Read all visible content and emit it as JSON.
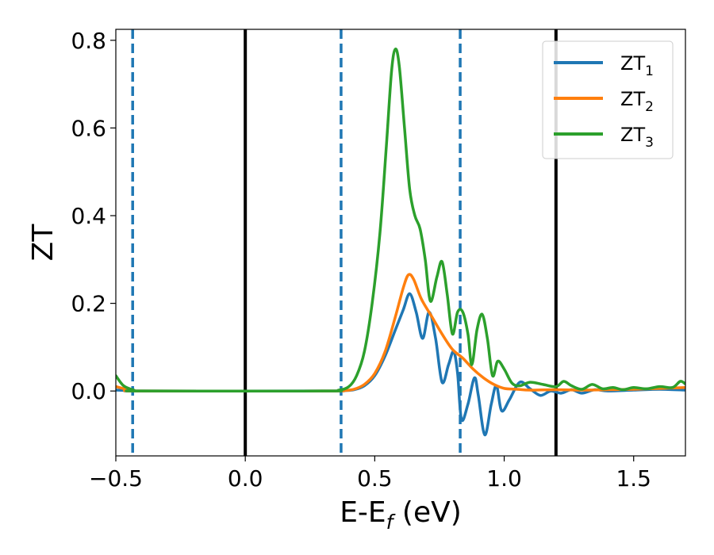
{
  "chart_data": {
    "type": "line",
    "xlabel": {
      "main": "E-E",
      "sub": "f",
      "tail": " (eV)"
    },
    "ylabel": "ZT",
    "xlim": [
      -0.5,
      1.7
    ],
    "ylim": [
      -0.148,
      0.825
    ],
    "xticks": [
      -0.5,
      0.0,
      0.5,
      1.0,
      1.5
    ],
    "xtick_labels": [
      "−0.5",
      "0.0",
      "0.5",
      "1.0",
      "1.5"
    ],
    "yticks": [
      0.0,
      0.2,
      0.4,
      0.6,
      0.8
    ],
    "ytick_labels": [
      "0.0",
      "0.2",
      "0.4",
      "0.6",
      "0.8"
    ],
    "grid": false,
    "legend_position": "top-right",
    "vlines": [
      {
        "x": -0.435,
        "style": "dashed",
        "color": "#1f77b4"
      },
      {
        "x": 0.0,
        "style": "solid",
        "color": "#000000"
      },
      {
        "x": 0.37,
        "style": "dashed",
        "color": "#1f77b4"
      },
      {
        "x": 0.83,
        "style": "dashed",
        "color": "#1f77b4"
      },
      {
        "x": 1.2,
        "style": "solid",
        "color": "#000000"
      }
    ],
    "series": [
      {
        "name": "ZT",
        "name_sub": "1",
        "color": "#1f77b4",
        "points": [
          [
            -0.5,
            0.002
          ],
          [
            -0.45,
            0.001
          ],
          [
            -0.4,
            0.0
          ],
          [
            0.3,
            0.0
          ],
          [
            0.38,
            0.001
          ],
          [
            0.42,
            0.003
          ],
          [
            0.46,
            0.012
          ],
          [
            0.5,
            0.035
          ],
          [
            0.54,
            0.08
          ],
          [
            0.58,
            0.14
          ],
          [
            0.61,
            0.185
          ],
          [
            0.635,
            0.222
          ],
          [
            0.66,
            0.18
          ],
          [
            0.685,
            0.12
          ],
          [
            0.71,
            0.18
          ],
          [
            0.735,
            0.12
          ],
          [
            0.76,
            0.02
          ],
          [
            0.785,
            0.06
          ],
          [
            0.805,
            0.09
          ],
          [
            0.82,
            0.04
          ],
          [
            0.835,
            -0.065
          ],
          [
            0.86,
            -0.03
          ],
          [
            0.885,
            0.03
          ],
          [
            0.9,
            -0.01
          ],
          [
            0.925,
            -0.1
          ],
          [
            0.95,
            -0.03
          ],
          [
            0.97,
            0.012
          ],
          [
            0.99,
            -0.045
          ],
          [
            1.02,
            -0.02
          ],
          [
            1.06,
            0.02
          ],
          [
            1.1,
            0.005
          ],
          [
            1.14,
            -0.01
          ],
          [
            1.18,
            0.0
          ],
          [
            1.22,
            -0.005
          ],
          [
            1.26,
            0.003
          ],
          [
            1.3,
            -0.005
          ],
          [
            1.35,
            0.003
          ],
          [
            1.4,
            0.0
          ],
          [
            1.5,
            0.002
          ],
          [
            1.6,
            0.004
          ],
          [
            1.7,
            0.002
          ]
        ]
      },
      {
        "name": "ZT",
        "name_sub": "2",
        "color": "#ff7f0e",
        "points": [
          [
            -0.5,
            0.01
          ],
          [
            -0.45,
            0.003
          ],
          [
            -0.4,
            0.0
          ],
          [
            0.3,
            0.0
          ],
          [
            0.38,
            0.001
          ],
          [
            0.42,
            0.004
          ],
          [
            0.46,
            0.015
          ],
          [
            0.5,
            0.04
          ],
          [
            0.54,
            0.09
          ],
          [
            0.58,
            0.17
          ],
          [
            0.61,
            0.235
          ],
          [
            0.63,
            0.265
          ],
          [
            0.65,
            0.255
          ],
          [
            0.68,
            0.21
          ],
          [
            0.72,
            0.17
          ],
          [
            0.76,
            0.13
          ],
          [
            0.8,
            0.095
          ],
          [
            0.84,
            0.075
          ],
          [
            0.88,
            0.05
          ],
          [
            0.92,
            0.03
          ],
          [
            0.96,
            0.015
          ],
          [
            1.0,
            0.006
          ],
          [
            1.05,
            0.004
          ],
          [
            1.1,
            0.002
          ],
          [
            1.2,
            0.003
          ],
          [
            1.3,
            0.002
          ],
          [
            1.4,
            0.003
          ],
          [
            1.5,
            0.004
          ],
          [
            1.6,
            0.006
          ],
          [
            1.7,
            0.008
          ]
        ]
      },
      {
        "name": "ZT",
        "name_sub": "3",
        "color": "#2ca02c",
        "points": [
          [
            -0.5,
            0.035
          ],
          [
            -0.47,
            0.012
          ],
          [
            -0.43,
            0.002
          ],
          [
            -0.4,
            0.0
          ],
          [
            0.3,
            0.0
          ],
          [
            0.36,
            0.002
          ],
          [
            0.4,
            0.01
          ],
          [
            0.43,
            0.035
          ],
          [
            0.46,
            0.09
          ],
          [
            0.49,
            0.2
          ],
          [
            0.52,
            0.36
          ],
          [
            0.545,
            0.56
          ],
          [
            0.565,
            0.73
          ],
          [
            0.58,
            0.78
          ],
          [
            0.595,
            0.74
          ],
          [
            0.615,
            0.6
          ],
          [
            0.635,
            0.46
          ],
          [
            0.655,
            0.4
          ],
          [
            0.675,
            0.37
          ],
          [
            0.695,
            0.3
          ],
          [
            0.715,
            0.205
          ],
          [
            0.74,
            0.26
          ],
          [
            0.76,
            0.295
          ],
          [
            0.78,
            0.22
          ],
          [
            0.8,
            0.13
          ],
          [
            0.82,
            0.18
          ],
          [
            0.84,
            0.18
          ],
          [
            0.86,
            0.13
          ],
          [
            0.875,
            0.06
          ],
          [
            0.895,
            0.14
          ],
          [
            0.915,
            0.175
          ],
          [
            0.935,
            0.12
          ],
          [
            0.955,
            0.035
          ],
          [
            0.975,
            0.068
          ],
          [
            1.0,
            0.05
          ],
          [
            1.03,
            0.018
          ],
          [
            1.06,
            0.012
          ],
          [
            1.1,
            0.02
          ],
          [
            1.15,
            0.015
          ],
          [
            1.2,
            0.01
          ],
          [
            1.23,
            0.022
          ],
          [
            1.26,
            0.012
          ],
          [
            1.3,
            0.004
          ],
          [
            1.34,
            0.015
          ],
          [
            1.38,
            0.005
          ],
          [
            1.42,
            0.008
          ],
          [
            1.46,
            0.003
          ],
          [
            1.5,
            0.008
          ],
          [
            1.55,
            0.005
          ],
          [
            1.6,
            0.01
          ],
          [
            1.65,
            0.008
          ],
          [
            1.68,
            0.022
          ],
          [
            1.7,
            0.016
          ]
        ]
      }
    ]
  }
}
